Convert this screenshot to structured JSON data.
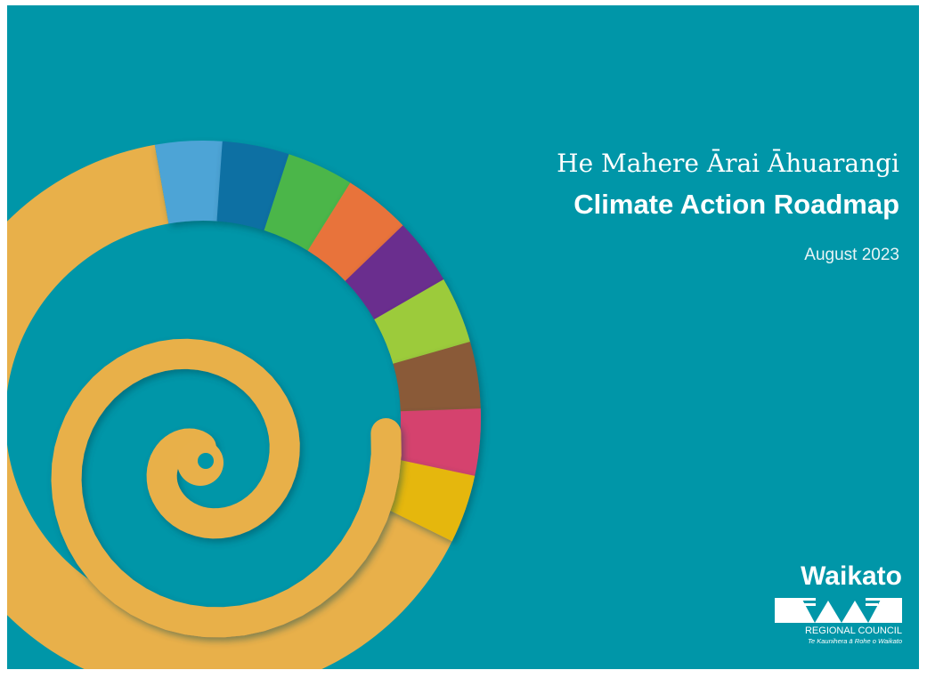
{
  "cover": {
    "title_maori": "He Mahere Ārai Āhuarangi",
    "title_english": "Climate Action Roadmap",
    "date": "August 2023",
    "logo": {
      "name": "Waikato",
      "subtitle": "REGIONAL COUNCIL",
      "tagline": "Te Kaunihera ā Rohe o Waikato"
    }
  }
}
